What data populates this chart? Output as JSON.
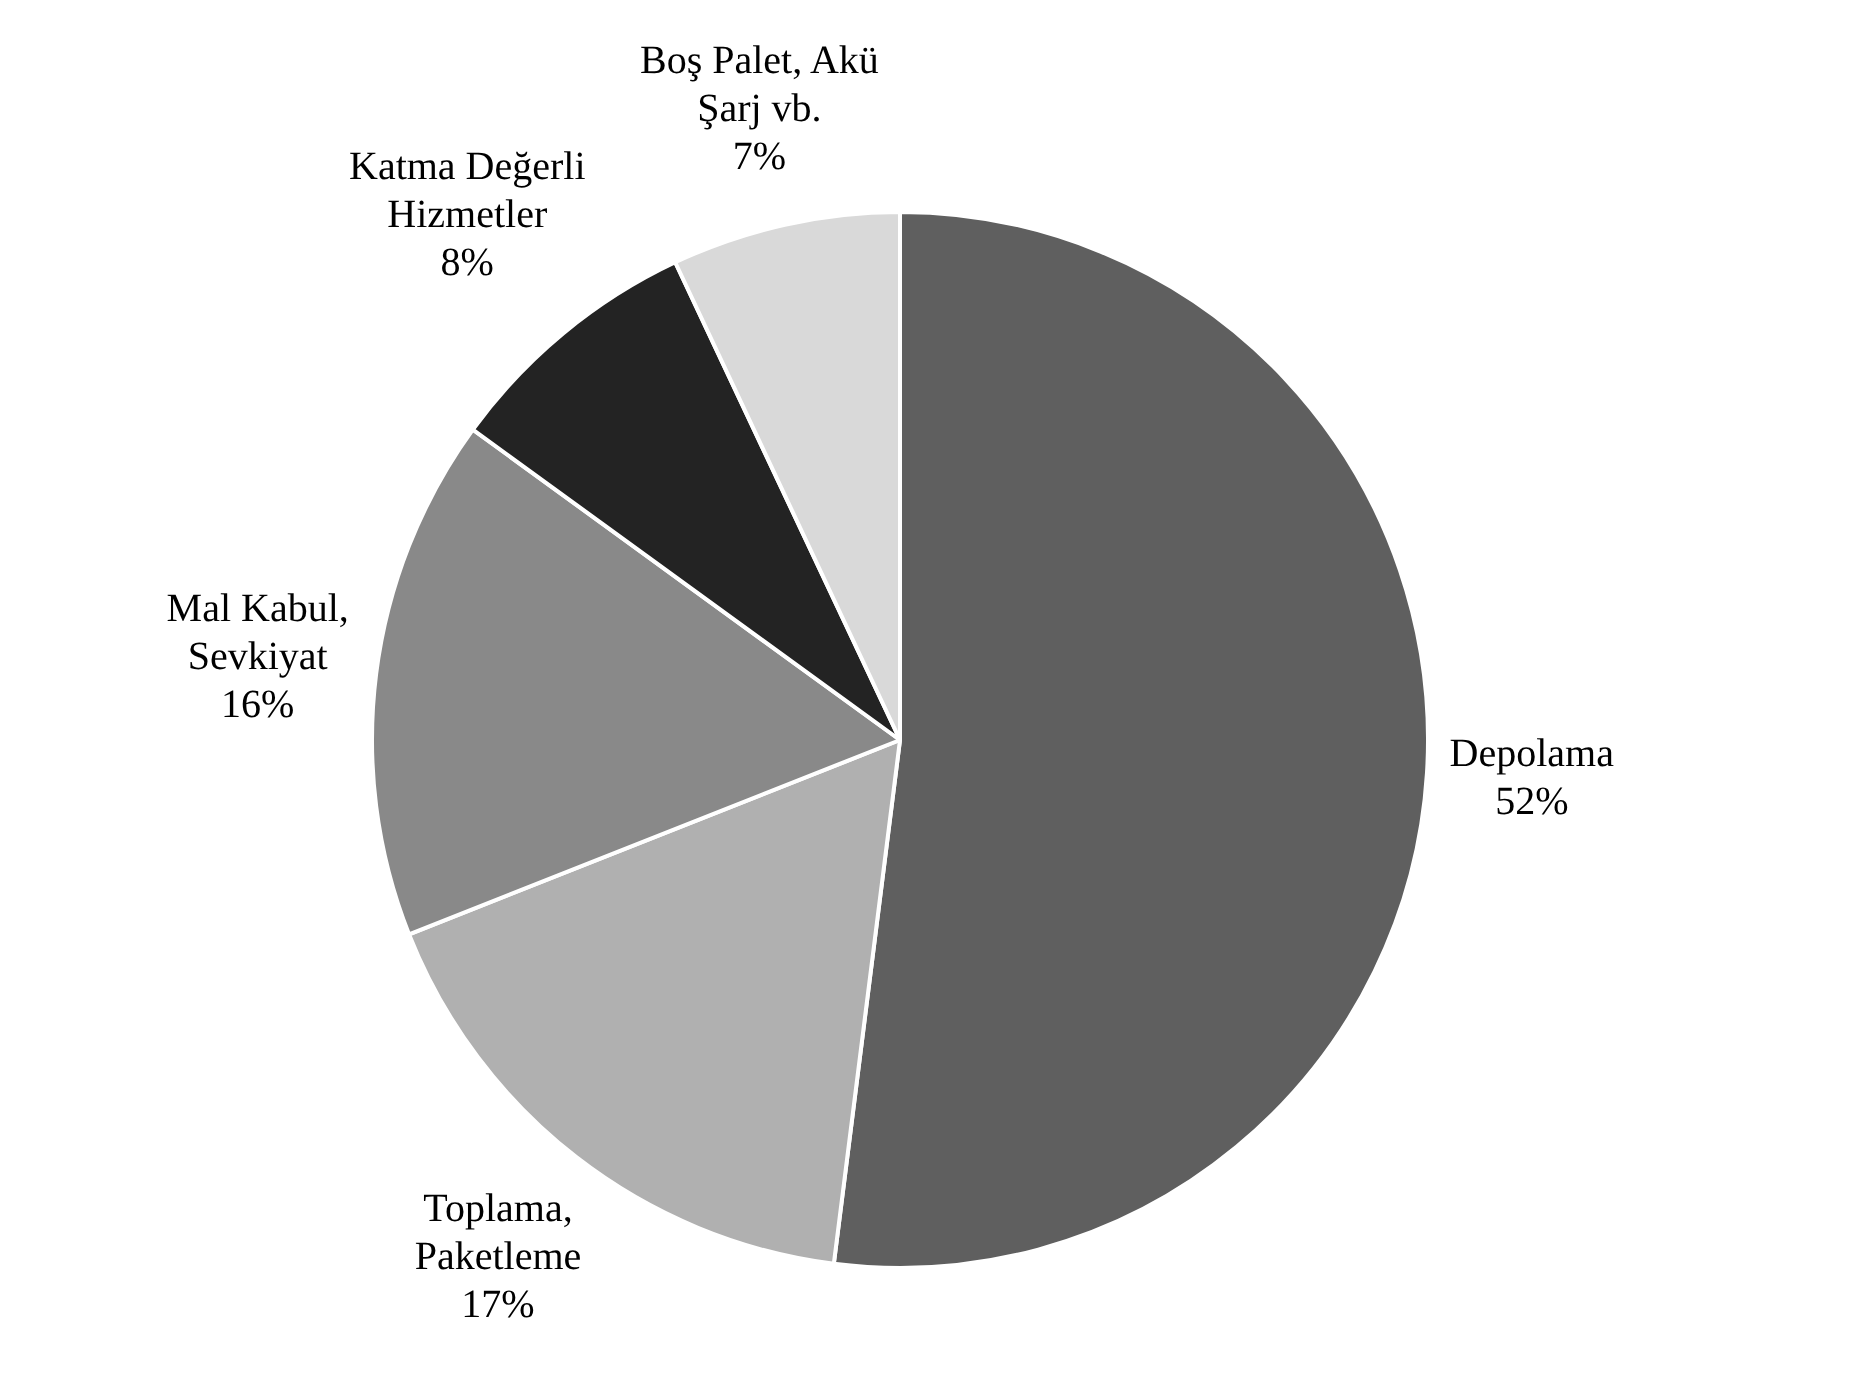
{
  "chart_data": {
    "type": "pie",
    "categories": [
      "Depolama",
      "Toplama, Paketleme",
      "Mal Kabul, Sevkiyat",
      "Katma Değerli Hizmetler",
      "Boş Palet, Akü Şarj vb."
    ],
    "values": [
      52,
      17,
      16,
      8,
      7
    ],
    "colors": [
      "#5f5f5f",
      "#b0b0b0",
      "#898989",
      "#232323",
      "#d9d9d9"
    ],
    "value_labels": [
      "52%",
      "17%",
      "16%",
      "8%",
      "7%"
    ],
    "legend": false
  }
}
